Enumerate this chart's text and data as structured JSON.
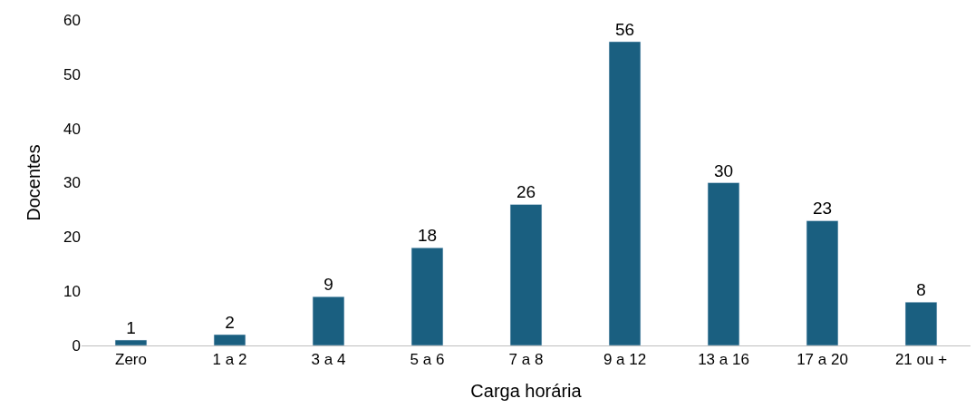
{
  "chart_data": {
    "type": "bar",
    "xlabel": "Carga horária",
    "ylabel": "Docentes",
    "categories": [
      "Zero",
      "1 a 2",
      "3 a 4",
      "5 a 6",
      "7 a 8",
      "9 a 12",
      "13 a 16",
      "17 a 20",
      "21 ou +"
    ],
    "values": [
      1,
      2,
      9,
      18,
      26,
      56,
      30,
      23,
      8
    ],
    "color": "#1a5f80",
    "ylim": [
      0,
      60
    ],
    "yticks": [
      0,
      10,
      20,
      30,
      40,
      50,
      60
    ],
    "grid": false,
    "data_labels": true
  }
}
